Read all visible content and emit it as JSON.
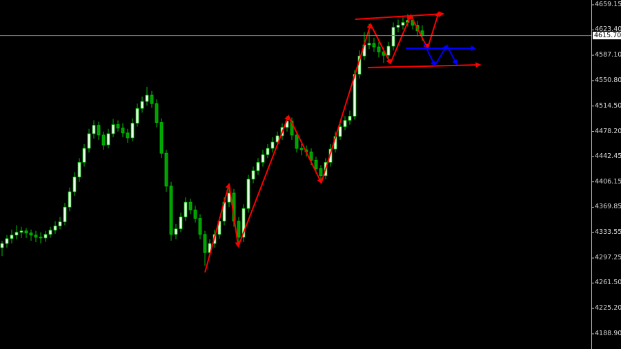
{
  "chart_data": {
    "type": "candlestick",
    "title": "",
    "xlabel": "",
    "ylabel": "",
    "ylim": [
      4188.9,
      4659.15
    ],
    "grid": false,
    "y_ticks": [
      "4659.15",
      "4623.40",
      "4587.10",
      "4550.80",
      "4514.50",
      "4478.20",
      "4442.45",
      "4406.15",
      "4369.85",
      "4333.55",
      "4297.25",
      "4261.50",
      "4225.20",
      "4188.90"
    ],
    "current_price": "4615.70",
    "colors": {
      "background": "#000000",
      "bull_body": "#e8ffe8",
      "candle_outline": "#00c000",
      "bear_body": "#00a000",
      "zigzag": "#ff0000",
      "projection": "#0000ff",
      "price_line": "#808080"
    },
    "candles_ohlc": [
      [
        4312,
        4322,
        4300,
        4318
      ],
      [
        4318,
        4330,
        4312,
        4325
      ],
      [
        4325,
        4338,
        4318,
        4330
      ],
      [
        4330,
        4344,
        4324,
        4334
      ],
      [
        4334,
        4342,
        4326,
        4336
      ],
      [
        4336,
        4340,
        4326,
        4333
      ],
      [
        4333,
        4338,
        4322,
        4330
      ],
      [
        4330,
        4336,
        4320,
        4327
      ],
      [
        4327,
        4334,
        4318,
        4326
      ],
      [
        4326,
        4336,
        4320,
        4331
      ],
      [
        4331,
        4342,
        4326,
        4337
      ],
      [
        4337,
        4350,
        4332,
        4343
      ],
      [
        4343,
        4356,
        4338,
        4349
      ],
      [
        4349,
        4376,
        4344,
        4370
      ],
      [
        4370,
        4398,
        4364,
        4392
      ],
      [
        4392,
        4420,
        4386,
        4413
      ],
      [
        4413,
        4440,
        4406,
        4434
      ],
      [
        4434,
        4460,
        4428,
        4454
      ],
      [
        4454,
        4482,
        4448,
        4475
      ],
      [
        4475,
        4494,
        4468,
        4487
      ],
      [
        4487,
        4492,
        4466,
        4473
      ],
      [
        4473,
        4478,
        4452,
        4459
      ],
      [
        4459,
        4482,
        4454,
        4475
      ],
      [
        4475,
        4496,
        4470,
        4488
      ],
      [
        4488,
        4494,
        4478,
        4483
      ],
      [
        4483,
        4490,
        4470,
        4476
      ],
      [
        4476,
        4482,
        4462,
        4469
      ],
      [
        4469,
        4497,
        4464,
        4490
      ],
      [
        4490,
        4518,
        4485,
        4511
      ],
      [
        4511,
        4528,
        4505,
        4521
      ],
      [
        4521,
        4542,
        4515,
        4530
      ],
      [
        4530,
        4536,
        4512,
        4518
      ],
      [
        4518,
        4524,
        4484,
        4491
      ],
      [
        4491,
        4497,
        4440,
        4447
      ],
      [
        4447,
        4452,
        4392,
        4400
      ],
      [
        4400,
        4406,
        4322,
        4331
      ],
      [
        4331,
        4346,
        4324,
        4339
      ],
      [
        4339,
        4362,
        4334,
        4356
      ],
      [
        4356,
        4384,
        4350,
        4377
      ],
      [
        4377,
        4382,
        4360,
        4366
      ],
      [
        4366,
        4372,
        4348,
        4354
      ],
      [
        4354,
        4360,
        4324,
        4331
      ],
      [
        4331,
        4336,
        4286,
        4305
      ],
      [
        4305,
        4324,
        4298,
        4318
      ],
      [
        4318,
        4338,
        4312,
        4331
      ],
      [
        4331,
        4356,
        4325,
        4350
      ],
      [
        4350,
        4384,
        4344,
        4377
      ],
      [
        4377,
        4404,
        4370,
        4390
      ],
      [
        4390,
        4396,
        4342,
        4350
      ],
      [
        4350,
        4356,
        4318,
        4327
      ],
      [
        4327,
        4374,
        4320,
        4368
      ],
      [
        4368,
        4416,
        4362,
        4410
      ],
      [
        4410,
        4428,
        4404,
        4422
      ],
      [
        4422,
        4440,
        4416,
        4434
      ],
      [
        4434,
        4452,
        4428,
        4445
      ],
      [
        4445,
        4460,
        4440,
        4454
      ],
      [
        4454,
        4470,
        4448,
        4463
      ],
      [
        4463,
        4478,
        4458,
        4472
      ],
      [
        4472,
        4490,
        4466,
        4484
      ],
      [
        4484,
        4500,
        4478,
        4493
      ],
      [
        4493,
        4498,
        4466,
        4473
      ],
      [
        4473,
        4478,
        4448,
        4454
      ],
      [
        4454,
        4460,
        4444,
        4452
      ],
      [
        4452,
        4458,
        4442,
        4449
      ],
      [
        4449,
        4454,
        4430,
        4437
      ],
      [
        4437,
        4442,
        4418,
        4425
      ],
      [
        4425,
        4430,
        4408,
        4415
      ],
      [
        4415,
        4440,
        4410,
        4434
      ],
      [
        4434,
        4460,
        4428,
        4453
      ],
      [
        4453,
        4478,
        4448,
        4471
      ],
      [
        4471,
        4492,
        4466,
        4485
      ],
      [
        4485,
        4500,
        4480,
        4494
      ],
      [
        4494,
        4508,
        4488,
        4500
      ],
      [
        4500,
        4566,
        4495,
        4560
      ],
      [
        4560,
        4594,
        4554,
        4586
      ],
      [
        4586,
        4620,
        4580,
        4602
      ],
      [
        4602,
        4632,
        4596,
        4604
      ],
      [
        4604,
        4612,
        4592,
        4599
      ],
      [
        4599,
        4606,
        4584,
        4592
      ],
      [
        4592,
        4598,
        4576,
        4587
      ],
      [
        4587,
        4606,
        4580,
        4600
      ],
      [
        4600,
        4634,
        4594,
        4627
      ],
      [
        4627,
        4638,
        4620,
        4630
      ],
      [
        4630,
        4642,
        4624,
        4634
      ],
      [
        4634,
        4646,
        4628,
        4637
      ],
      [
        4637,
        4644,
        4624,
        4630
      ],
      [
        4630,
        4636,
        4614,
        4622
      ],
      [
        4622,
        4630,
        4608,
        4615
      ]
    ],
    "drawings": {
      "red_zigzag": [
        [
          42,
          4276.7
        ],
        [
          47,
          4402.8
        ],
        [
          48.9,
          4314
        ],
        [
          59.3,
          4500.4
        ],
        [
          66.1,
          4404.8
        ],
        [
          76.3,
          4631.5
        ],
        [
          80.4,
          4575.4
        ],
        [
          84.6,
          4644.4
        ],
        [
          88.1,
          4597
        ],
        [
          90.4,
          4648.3
        ]
      ],
      "red_upper_channel": [
        [
          73.1,
          4638.4
        ],
        [
          91.3,
          4646.3
        ]
      ],
      "red_lower_channel": [
        [
          75.7,
          4569.4
        ],
        [
          98.9,
          4573.4
        ]
      ],
      "blue_level": [
        [
          83.6,
          4597
        ],
        [
          97.9,
          4597
        ]
      ],
      "blue_zigzag": [
        [
          87.3,
          4604.9
        ],
        [
          89.6,
          4572.4
        ],
        [
          92.1,
          4601
        ],
        [
          94.1,
          4574.4
        ]
      ]
    }
  }
}
